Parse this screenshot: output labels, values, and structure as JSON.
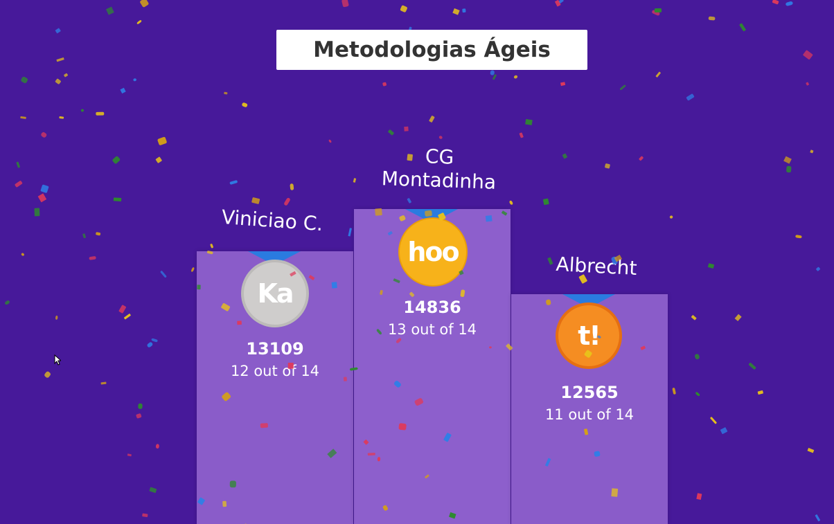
{
  "title": "Metodologias Ágeis",
  "podium": {
    "second": {
      "name": "Viniciao C.",
      "avatar": "Ka",
      "score": "13109",
      "detail": "12 out of 14"
    },
    "first": {
      "name_line1": "CG",
      "name_line2": "Montadinha",
      "avatar": "hoo",
      "score": "14836",
      "detail": "13 out of 14"
    },
    "third": {
      "name": "Albrecht",
      "avatar": "t!",
      "score": "12565",
      "detail": "11 out of 14"
    }
  },
  "colors": {
    "background": "#47199a",
    "podium": "#8a5cc9",
    "gold": "#f7b21a",
    "silver": "#cfcdcc",
    "bronze": "#f58d22",
    "ribbon": "#2a7be0"
  }
}
